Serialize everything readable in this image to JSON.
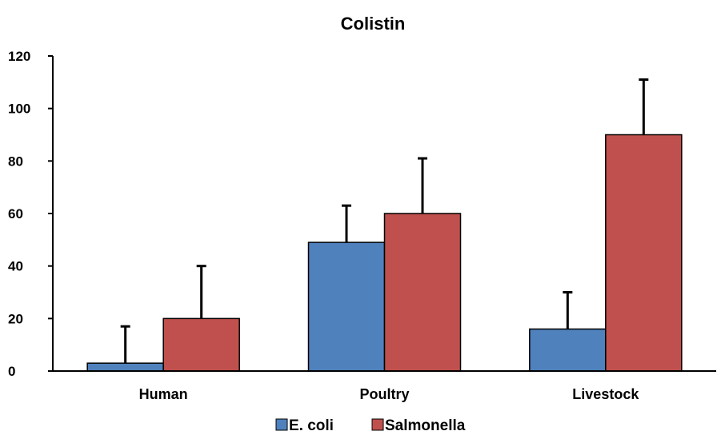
{
  "chart_data": {
    "type": "bar",
    "title": "Colistin",
    "xlabel": "",
    "ylabel": "",
    "categories": [
      "Human",
      "Poultry",
      "Livestock"
    ],
    "ylim": [
      0,
      120
    ],
    "yticks": [
      0,
      20,
      40,
      60,
      80,
      100,
      120
    ],
    "grid": false,
    "legend": "bottom",
    "series": [
      {
        "name": "E. coli",
        "color": "#4F81BD",
        "values": [
          3,
          49,
          16
        ],
        "error": [
          14,
          14,
          14
        ]
      },
      {
        "name": "Salmonella",
        "color": "#C0504D",
        "values": [
          20,
          60,
          90
        ],
        "error": [
          20,
          21,
          21
        ]
      }
    ]
  }
}
